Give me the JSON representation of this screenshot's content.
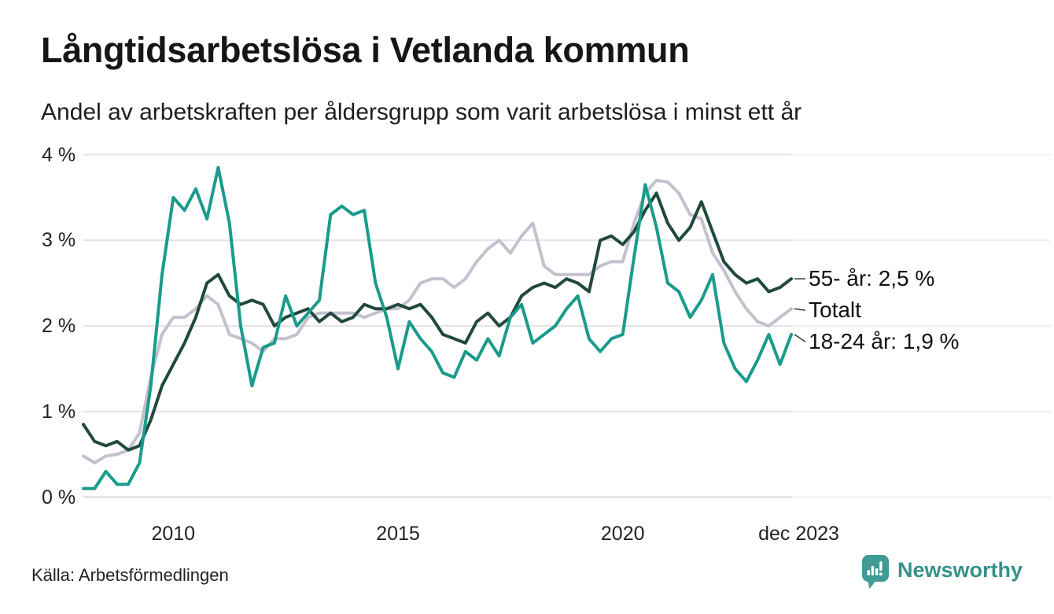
{
  "header": {
    "title": "Långtidsarbetslösa i Vetlanda kommun",
    "subtitle": "Andel av arbetskraften per åldersgrupp som varit arbetslösa i minst ett år"
  },
  "chart_data": {
    "type": "line",
    "title": "Långtidsarbetslösa i Vetlanda kommun",
    "subtitle": "Andel av arbetskraften per åldersgrupp som varit arbetslösa i minst ett år",
    "unit": "%",
    "x_start_year": 2008,
    "x_step_years": 0.25,
    "xlim": [
      2008,
      2023.92
    ],
    "ylim": [
      0,
      4
    ],
    "grid": true,
    "legend_position": "right-end-labels",
    "y_ticks": [
      {
        "value": 4,
        "label": "4 %"
      },
      {
        "value": 3,
        "label": "3 %"
      },
      {
        "value": 2,
        "label": "2 %"
      },
      {
        "value": 1,
        "label": "1 %"
      },
      {
        "value": 0,
        "label": "0 %"
      }
    ],
    "x_ticks": [
      {
        "value": 2010,
        "label": "2010"
      },
      {
        "value": 2015,
        "label": "2015"
      },
      {
        "value": 2020,
        "label": "2020"
      },
      {
        "value": 2023.917,
        "label": "dec 2023"
      }
    ],
    "series": [
      {
        "name": "Totalt",
        "color": "#c4c1ce",
        "end_label": "Totalt",
        "end_value_text": "",
        "values": [
          0.48,
          0.4,
          0.48,
          0.5,
          0.55,
          0.75,
          1.4,
          1.9,
          2.1,
          2.1,
          2.2,
          2.35,
          2.25,
          1.9,
          1.85,
          1.8,
          1.7,
          1.85,
          1.85,
          1.9,
          2.1,
          2.15,
          2.15,
          2.15,
          2.15,
          2.1,
          2.15,
          2.2,
          2.2,
          2.3,
          2.5,
          2.55,
          2.55,
          2.45,
          2.55,
          2.75,
          2.9,
          3.0,
          2.85,
          3.05,
          3.2,
          2.7,
          2.6,
          2.6,
          2.6,
          2.6,
          2.7,
          2.75,
          2.75,
          3.2,
          3.55,
          3.7,
          3.68,
          3.55,
          3.3,
          3.25,
          2.85,
          2.65,
          2.4,
          2.2,
          2.05,
          2.0,
          2.1,
          2.2
        ]
      },
      {
        "name": "55- år",
        "color": "#21493e",
        "end_label": "55- år: 2,5 %",
        "end_value_text": "2,5 %",
        "values": [
          0.85,
          0.65,
          0.6,
          0.65,
          0.55,
          0.6,
          0.9,
          1.3,
          1.55,
          1.8,
          2.1,
          2.5,
          2.6,
          2.35,
          2.25,
          2.3,
          2.25,
          2.0,
          2.1,
          2.15,
          2.2,
          2.05,
          2.15,
          2.05,
          2.1,
          2.25,
          2.2,
          2.2,
          2.25,
          2.2,
          2.25,
          2.1,
          1.9,
          1.85,
          1.8,
          2.05,
          2.15,
          2.0,
          2.1,
          2.35,
          2.45,
          2.5,
          2.45,
          2.55,
          2.5,
          2.4,
          3.0,
          3.05,
          2.95,
          3.1,
          3.35,
          3.55,
          3.2,
          3.0,
          3.15,
          3.45,
          3.1,
          2.75,
          2.6,
          2.5,
          2.55,
          2.4,
          2.45,
          2.55
        ]
      },
      {
        "name": "18-24 år",
        "color": "#1a9b8b",
        "end_label": "18-24 år: 1,9 %",
        "end_value_text": "1,9 %",
        "values": [
          0.1,
          0.1,
          0.3,
          0.15,
          0.15,
          0.4,
          1.3,
          2.6,
          3.5,
          3.35,
          3.6,
          3.25,
          3.85,
          3.2,
          2.0,
          1.3,
          1.75,
          1.8,
          2.35,
          2.0,
          2.15,
          2.3,
          3.3,
          3.4,
          3.3,
          3.35,
          2.5,
          2.1,
          1.5,
          2.05,
          1.85,
          1.7,
          1.45,
          1.4,
          1.7,
          1.6,
          1.85,
          1.65,
          2.1,
          2.25,
          1.8,
          1.9,
          2.0,
          2.2,
          2.35,
          1.85,
          1.7,
          1.85,
          1.9,
          2.8,
          3.65,
          3.15,
          2.5,
          2.4,
          2.1,
          2.3,
          2.6,
          1.8,
          1.5,
          1.35,
          1.6,
          1.9,
          1.55,
          1.9
        ]
      }
    ]
  },
  "footer": {
    "source": "Källa: Arbetsförmedlingen",
    "brand_name": "Newsworthy"
  }
}
